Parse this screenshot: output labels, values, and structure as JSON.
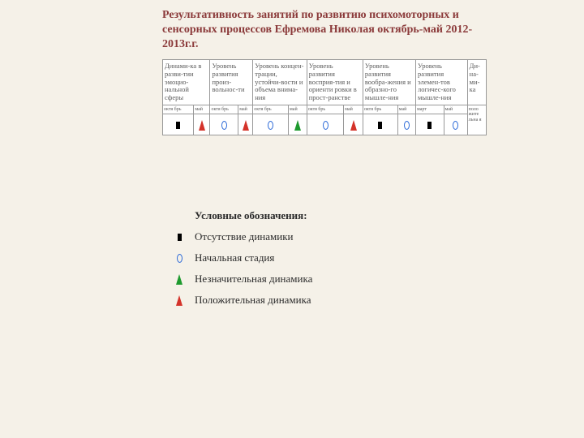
{
  "title": "Результативность занятий по развитию психомоторных и сенсорных процессов Ефремова Николая октябрь-май 2012-2013г.г.",
  "colors": {
    "blue": "#2e6bd8",
    "red": "#d4332a",
    "green": "#1e9a2e",
    "black": "#000000"
  },
  "headers": [
    "Динами-ка в разви-тии эмоцио-нальной сферы",
    "Уровень развития произ-вольнос-ти",
    "Уровень концен-трации, устойчи-вости и объема внима-ния",
    "Уровень развития восприя-тия и ориенти ровки в прост-ранстве",
    "Уровень развития вообра-жения и образно-го мышле-ния",
    "Уровень развития элемен-тов логичес-кого мышле-ния",
    "Ди-на-ми-ка"
  ],
  "months": [
    "октя брь",
    "май",
    "октя брь",
    "май",
    "октя брь",
    "май",
    "октя брь",
    "май",
    "октя брь",
    "май",
    "март",
    "май"
  ],
  "result_label": "поло жите льна я",
  "symbols": [
    {
      "type": "square",
      "color": "black"
    },
    {
      "type": "triangle",
      "color": "red"
    },
    {
      "type": "ellipse",
      "color": "blue"
    },
    {
      "type": "triangle",
      "color": "red"
    },
    {
      "type": "ellipse",
      "color": "blue"
    },
    {
      "type": "triangle",
      "color": "green"
    },
    {
      "type": "ellipse",
      "color": "blue"
    },
    {
      "type": "triangle",
      "color": "red"
    },
    {
      "type": "square",
      "color": "black"
    },
    {
      "type": "ellipse",
      "color": "blue"
    },
    {
      "type": "square",
      "color": "black"
    },
    {
      "type": "ellipse",
      "color": "blue"
    }
  ],
  "legend": {
    "title": "Условные обозначения:",
    "items": [
      {
        "sym": {
          "type": "square",
          "color": "black"
        },
        "text": "Отсутствие динамики"
      },
      {
        "sym": {
          "type": "ellipse",
          "color": "blue"
        },
        "text": "Начальная стадия"
      },
      {
        "sym": {
          "type": "triangle",
          "color": "green"
        },
        "text": "Незначительная динамика"
      },
      {
        "sym": {
          "type": "triangle",
          "color": "red"
        },
        "text": "Положительная динамика"
      }
    ]
  }
}
